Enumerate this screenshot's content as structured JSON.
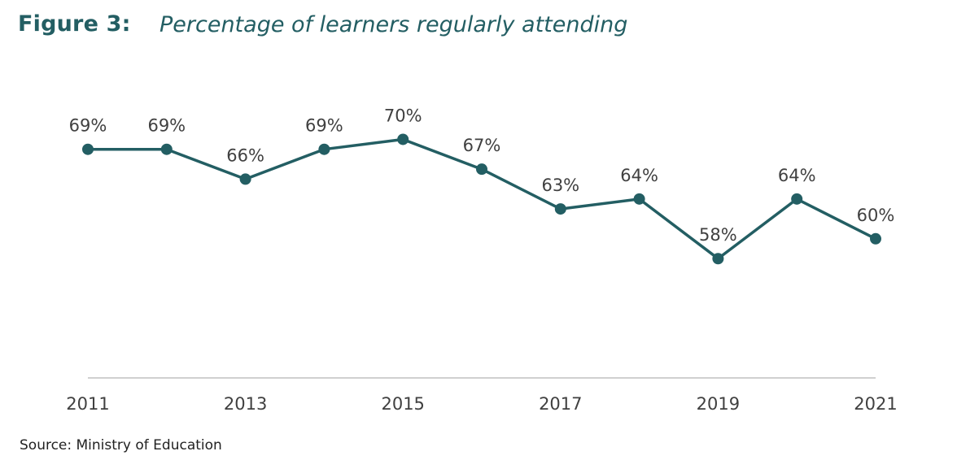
{
  "figure": {
    "label": "Figure 3:",
    "title": "Percentage of learners regularly attending"
  },
  "source": "Source: Ministry of Education",
  "colors": {
    "line": "#235e63",
    "marker": "#235e63",
    "text": "#404040",
    "axis": "#d0d0d0"
  },
  "chart_data": {
    "type": "line",
    "title": "Percentage of learners regularly attending",
    "x": [
      2011,
      2012,
      2013,
      2014,
      2015,
      2016,
      2017,
      2018,
      2019,
      2020,
      2021
    ],
    "xtick_labels": [
      "2011",
      "2013",
      "2015",
      "2017",
      "2019",
      "2021"
    ],
    "series": [
      {
        "values": [
          69,
          69,
          66,
          69,
          70,
          67,
          63,
          64,
          58,
          64,
          60
        ],
        "labels": [
          "69%",
          "69%",
          "66%",
          "69%",
          "70%",
          "67%",
          "63%",
          "64%",
          "58%",
          "64%",
          "60%"
        ]
      }
    ],
    "ylim": [
      46,
      72
    ],
    "grid": false,
    "legend": "none"
  }
}
